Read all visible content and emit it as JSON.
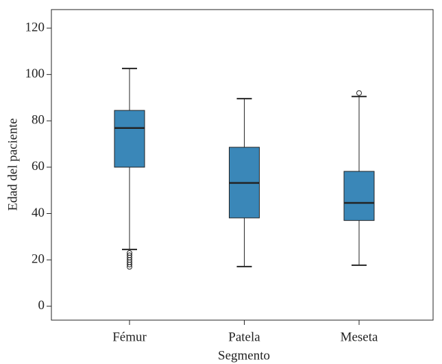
{
  "chart_data": {
    "type": "box",
    "x_label": "Segmento",
    "y_label": "Edad del paciente",
    "categories": [
      "Fémur",
      "Patela",
      "Meseta"
    ],
    "color": "#3a87b8",
    "boxes": [
      {
        "whisker_low": 24.5,
        "q1": 60,
        "median": 76.9,
        "q3": 84.5,
        "whisker_high": 102.6,
        "outliers": [
          23,
          22,
          21,
          20,
          19,
          18,
          17
        ]
      },
      {
        "whisker_low": 17.1,
        "q1": 38.1,
        "median": 53.2,
        "q3": 68.6,
        "whisker_high": 89.6,
        "outliers": []
      },
      {
        "whisker_low": 17.7,
        "q1": 37,
        "median": 44.6,
        "q3": 58.2,
        "whisker_high": 90.5,
        "outliers": [
          92
        ]
      }
    ],
    "ylim": [
      -6,
      128
    ],
    "yticks": [
      0,
      20,
      40,
      60,
      80,
      100,
      120
    ],
    "grid": false
  }
}
